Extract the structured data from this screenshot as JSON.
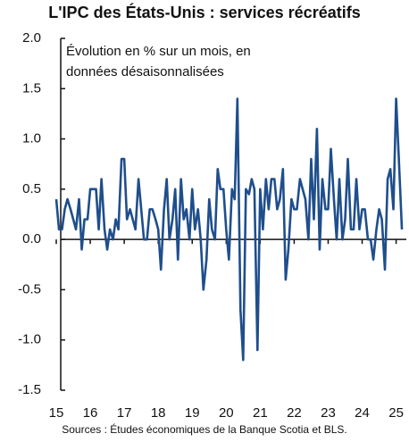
{
  "chart_data": {
    "type": "line",
    "title": "L'IPC des États-Unis : services récréatifs",
    "annotation": "Évolution en % sur un mois, en données désaisonnalisées",
    "source": "Sources : Études économiques de la Banque Scotia et BLS.",
    "x": [
      15,
      15.08,
      15.17,
      15.25,
      15.33,
      15.42,
      15.5,
      15.58,
      15.67,
      15.75,
      15.83,
      15.92,
      16,
      16.08,
      16.17,
      16.25,
      16.33,
      16.42,
      16.5,
      16.58,
      16.67,
      16.75,
      16.83,
      16.92,
      17,
      17.08,
      17.17,
      17.25,
      17.33,
      17.42,
      17.5,
      17.58,
      17.67,
      17.75,
      17.83,
      17.92,
      18,
      18.08,
      18.17,
      18.25,
      18.33,
      18.42,
      18.5,
      18.58,
      18.67,
      18.75,
      18.83,
      18.92,
      19,
      19.08,
      19.17,
      19.25,
      19.33,
      19.42,
      19.5,
      19.58,
      19.67,
      19.75,
      19.83,
      19.92,
      20,
      20.08,
      20.17,
      20.25,
      20.33,
      20.42,
      20.5,
      20.58,
      20.67,
      20.75,
      20.83,
      20.92,
      21,
      21.08,
      21.17,
      21.25,
      21.33,
      21.42,
      21.5,
      21.58,
      21.67,
      21.75,
      21.83,
      21.92,
      22,
      22.08,
      22.17,
      22.25,
      22.33,
      22.42,
      22.5,
      22.58,
      22.67,
      22.75,
      22.83,
      22.92,
      23,
      23.08,
      23.17,
      23.25,
      23.33,
      23.42,
      23.5,
      23.58,
      23.67,
      23.75,
      23.83,
      23.92,
      24,
      24.08,
      24.17,
      24.25,
      24.33,
      24.42,
      24.5,
      24.58,
      24.67,
      24.75,
      24.83,
      24.92,
      25,
      25.08,
      25.17
    ],
    "series": [
      {
        "name": "Services récréatifs",
        "color": "#1f4e8c",
        "values": [
          0.4,
          0.1,
          0.1,
          0.3,
          0.4,
          0.3,
          0.2,
          0.1,
          0.4,
          -0.1,
          0.2,
          0.2,
          0.5,
          0.5,
          0.5,
          0.1,
          0.6,
          0.1,
          -0.1,
          0.1,
          0.0,
          0.2,
          0.1,
          0.8,
          0.8,
          0.2,
          0.3,
          0.2,
          0.1,
          0.6,
          0.3,
          0.0,
          0.0,
          0.3,
          0.3,
          0.2,
          0.1,
          -0.3,
          0.3,
          0.6,
          0.0,
          0.2,
          0.5,
          -0.2,
          0.6,
          0.2,
          0.3,
          0.0,
          0.5,
          0.1,
          0.3,
          0.0,
          -0.5,
          -0.2,
          0.4,
          0.1,
          0.0,
          0.7,
          0.5,
          0.5,
          0.1,
          -0.2,
          0.5,
          0.4,
          1.4,
          -0.7,
          -1.2,
          0.5,
          0.45,
          0.6,
          0.5,
          -1.1,
          0.5,
          0.1,
          0.6,
          0.3,
          0.6,
          0.6,
          0.3,
          0.4,
          0.7,
          -0.4,
          -0.1,
          0.4,
          0.3,
          0.3,
          0.6,
          0.5,
          0.4,
          0.0,
          0.8,
          0.2,
          1.1,
          -0.1,
          0.6,
          0.3,
          0.3,
          0.9,
          0.4,
          0.0,
          0.6,
          0.0,
          0.2,
          0.8,
          0.1,
          0.1,
          0.6,
          0.1,
          0.3,
          0.3,
          0.0,
          0.0,
          -0.2,
          0.1,
          0.3,
          0.2,
          -0.3,
          0.6,
          0.7,
          0.3,
          1.4,
          0.8,
          0.1
        ]
      }
    ],
    "xlim": [
      15,
      25.3
    ],
    "xticks": [
      15,
      16,
      17,
      18,
      19,
      20,
      21,
      22,
      23,
      24,
      25
    ],
    "ylim": [
      -1.5,
      2.0
    ],
    "yticks": [
      {
        "value": 2.0,
        "label": "2.0"
      },
      {
        "value": 1.5,
        "label": "1.5"
      },
      {
        "value": 1.0,
        "label": "1.0"
      },
      {
        "value": 0.5,
        "label": "0.5"
      },
      {
        "value": 0,
        "label": "0.0"
      },
      {
        "value": -0.5,
        "label": "-0.5"
      },
      {
        "value": -1.0,
        "label": "-1.0"
      },
      {
        "value": -1.5,
        "label": "-1.5"
      }
    ]
  }
}
